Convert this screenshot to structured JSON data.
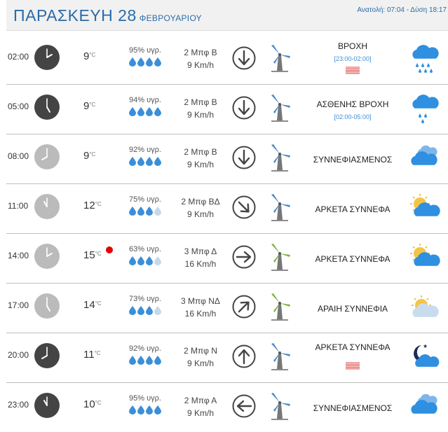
{
  "header": {
    "day": "ΠΑΡΑΣΚΕΥΗ 28",
    "month": "ΦΕΒΡΟΥΑΡΙΟΥ",
    "sun_times": "Ανατολή: 07:04 - Δύση 18:17"
  },
  "units": {
    "temp": "°C"
  },
  "colors": {
    "title_blue": "#2a6ba8",
    "drop_blue": "#3a8fd8",
    "drop_empty": "#c6d9ea",
    "clock_dark": "#444444",
    "clock_light": "#bbbbbb",
    "turbine_blue": "#4a89c8",
    "turbine_green": "#7cb342",
    "cloud_blue": "#2f8fe0",
    "rain_lines_red": "#e04848",
    "hot_dot": "#e60000"
  },
  "rows": [
    {
      "time": "02:00",
      "hour": 2,
      "clock": "dark",
      "temp": "9",
      "humidity": "95% υγρ.",
      "drops": 4,
      "wind_force": "2 Μπφ Β",
      "wind_speed": "9 Km/h",
      "arrow": "down",
      "turbine": "blue",
      "condition": "ΒΡΟΧΗ",
      "range": "[23:00-02:00]",
      "rain_lines": true,
      "icon": "rain-heavy-icon"
    },
    {
      "time": "05:00",
      "hour": 5,
      "clock": "dark",
      "temp": "9",
      "humidity": "94% υγρ.",
      "drops": 4,
      "wind_force": "2 Μπφ Β",
      "wind_speed": "9 Km/h",
      "arrow": "down",
      "turbine": "blue",
      "condition": "ΑΣΘΕΝΗΣ ΒΡΟΧΗ",
      "range": "[02:00-05:00]",
      "rain_lines": false,
      "icon": "rain-light-icon"
    },
    {
      "time": "08:00",
      "hour": 8,
      "clock": "light",
      "temp": "9",
      "humidity": "92% υγρ.",
      "drops": 4,
      "wind_force": "2 Μπφ Β",
      "wind_speed": "9 Km/h",
      "arrow": "down",
      "turbine": "blue",
      "condition": "ΣΥΝΝΕΦΙΑΣΜΕΝΟΣ",
      "range": "",
      "rain_lines": false,
      "icon": "overcast-icon"
    },
    {
      "time": "11:00",
      "hour": 11,
      "clock": "light",
      "temp": "12",
      "humidity": "75% υγρ.",
      "drops": 3,
      "wind_force": "2 Μπφ ΒΔ",
      "wind_speed": "9 Km/h",
      "arrow": "down-right",
      "turbine": "blue",
      "condition": "ΑΡΚΕΤΑ ΣΥΝΝΕΦΑ",
      "range": "",
      "rain_lines": false,
      "icon": "partly-cloudy-icon"
    },
    {
      "time": "14:00",
      "hour": 14,
      "clock": "light",
      "temp": "15",
      "humidity": "63% υγρ.",
      "drops": 3,
      "wind_force": "3 Μπφ Δ",
      "wind_speed": "16 Km/h",
      "arrow": "right",
      "turbine": "green",
      "condition": "ΑΡΚΕΤΑ ΣΥΝΝΕΦΑ",
      "range": "",
      "rain_lines": false,
      "icon": "partly-cloudy-icon",
      "hot": true
    },
    {
      "time": "17:00",
      "hour": 17,
      "clock": "light",
      "temp": "14",
      "humidity": "73% υγρ.",
      "drops": 3,
      "wind_force": "3 Μπφ ΝΔ",
      "wind_speed": "16 Km/h",
      "arrow": "up-right",
      "turbine": "green",
      "condition": "ΑΡΑΙΗ ΣΥΝΝΕΦΙΑ",
      "range": "",
      "rain_lines": false,
      "icon": "few-clouds-icon"
    },
    {
      "time": "20:00",
      "hour": 20,
      "clock": "dark",
      "temp": "11",
      "humidity": "92% υγρ.",
      "drops": 4,
      "wind_force": "2 Μπφ Ν",
      "wind_speed": "9 Km/h",
      "arrow": "up",
      "turbine": "blue",
      "condition": "ΑΡΚΕΤΑ ΣΥΝΝΕΦΑ",
      "range": "",
      "rain_lines": true,
      "icon": "night-cloudy-icon"
    },
    {
      "time": "23:00",
      "hour": 23,
      "clock": "dark",
      "temp": "10",
      "humidity": "95% υγρ.",
      "drops": 4,
      "wind_force": "2 Μπφ Α",
      "wind_speed": "9 Km/h",
      "arrow": "left",
      "turbine": "blue",
      "condition": "ΣΥΝΝΕΦΙΑΣΜΕΝΟΣ",
      "range": "",
      "rain_lines": false,
      "icon": "overcast-icon"
    }
  ]
}
